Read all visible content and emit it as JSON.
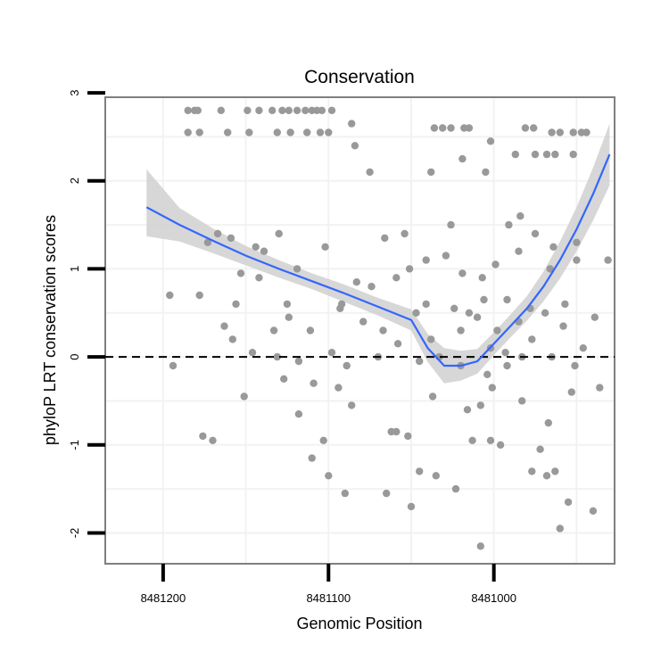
{
  "chart_data": {
    "type": "scatter",
    "title": "Conservation",
    "xlabel": "Genomic Position",
    "ylabel": "phyloP LRT conservation scores",
    "x_reversed": true,
    "xlim": [
      8481235,
      8480927
    ],
    "ylim": [
      -2.35,
      2.95
    ],
    "xticks": [
      8481200,
      8481100,
      8481000
    ],
    "x_tick_labels": [
      "8481200",
      "8481100",
      "8481000"
    ],
    "yticks": [
      -2,
      -1,
      0,
      1,
      2,
      3
    ],
    "y_tick_labels": [
      "-2",
      "-1",
      "0",
      "1",
      "2",
      "3"
    ],
    "reference_line": {
      "y": 0,
      "style": "dashed"
    },
    "colors": {
      "points": "#999999",
      "smooth": "#3366ff",
      "band": "#d0d0d0",
      "panel_border": "#7f7f7f",
      "grid": "#f2f2f2"
    },
    "series": [
      {
        "name": "scores",
        "points": [
          [
            8481185,
            2.8
          ],
          [
            8481181,
            2.8
          ],
          [
            8481179,
            2.8
          ],
          [
            8481165,
            2.8
          ],
          [
            8481149,
            2.8
          ],
          [
            8481142,
            2.8
          ],
          [
            8481134,
            2.8
          ],
          [
            8481128,
            2.8
          ],
          [
            8481124,
            2.8
          ],
          [
            8481119,
            2.8
          ],
          [
            8481114,
            2.8
          ],
          [
            8481110,
            2.8
          ],
          [
            8481107,
            2.8
          ],
          [
            8481104,
            2.8
          ],
          [
            8481098,
            2.8
          ],
          [
            8481185,
            2.55
          ],
          [
            8481178,
            2.55
          ],
          [
            8481161,
            2.55
          ],
          [
            8481148,
            2.55
          ],
          [
            8481131,
            2.55
          ],
          [
            8481123,
            2.55
          ],
          [
            8481113,
            2.55
          ],
          [
            8481105,
            2.55
          ],
          [
            8481100,
            2.55
          ],
          [
            8481036,
            2.6
          ],
          [
            8481031,
            2.6
          ],
          [
            8481026,
            2.6
          ],
          [
            8481018,
            2.6
          ],
          [
            8481015,
            2.6
          ],
          [
            8480981,
            2.6
          ],
          [
            8480976,
            2.6
          ],
          [
            8480965,
            2.55
          ],
          [
            8480960,
            2.55
          ],
          [
            8480952,
            2.55
          ],
          [
            8480947,
            2.55
          ],
          [
            8480944,
            2.55
          ],
          [
            8480987,
            2.3
          ],
          [
            8480975,
            2.3
          ],
          [
            8480968,
            2.3
          ],
          [
            8480963,
            2.3
          ],
          [
            8480952,
            2.3
          ],
          [
            8481086,
            2.65
          ],
          [
            8481084,
            2.4
          ],
          [
            8481075,
            2.1
          ],
          [
            8481038,
            2.1
          ],
          [
            8481005,
            2.1
          ],
          [
            8481002,
            2.45
          ],
          [
            8481019,
            2.25
          ],
          [
            8481173,
            1.3
          ],
          [
            8481167,
            1.4
          ],
          [
            8481159,
            1.35
          ],
          [
            8481144,
            1.25
          ],
          [
            8481130,
            1.4
          ],
          [
            8481139,
            1.2
          ],
          [
            8481102,
            1.25
          ],
          [
            8481066,
            1.35
          ],
          [
            8481054,
            1.4
          ],
          [
            8481026,
            1.5
          ],
          [
            8480984,
            1.6
          ],
          [
            8480991,
            1.5
          ],
          [
            8480975,
            1.4
          ],
          [
            8480964,
            1.25
          ],
          [
            8480950,
            1.3
          ],
          [
            8481153,
            0.95
          ],
          [
            8481142,
            0.9
          ],
          [
            8481119,
            1.0
          ],
          [
            8481083,
            0.85
          ],
          [
            8481074,
            0.8
          ],
          [
            8481059,
            0.9
          ],
          [
            8481051,
            1.0
          ],
          [
            8481041,
            1.1
          ],
          [
            8481029,
            1.15
          ],
          [
            8481019,
            0.95
          ],
          [
            8481007,
            0.9
          ],
          [
            8480999,
            1.05
          ],
          [
            8480985,
            1.2
          ],
          [
            8480966,
            1.0
          ],
          [
            8480950,
            1.1
          ],
          [
            8480931,
            1.1
          ],
          [
            8481163,
            0.35
          ],
          [
            8481158,
            0.2
          ],
          [
            8481146,
            0.05
          ],
          [
            8481133,
            0.3
          ],
          [
            8481124,
            0.45
          ],
          [
            8481111,
            0.3
          ],
          [
            8481093,
            0.55
          ],
          [
            8481079,
            0.4
          ],
          [
            8481067,
            0.3
          ],
          [
            8481058,
            0.15
          ],
          [
            8481047,
            0.5
          ],
          [
            8481038,
            0.2
          ],
          [
            8481020,
            0.3
          ],
          [
            8481010,
            0.45
          ],
          [
            8481002,
            0.1
          ],
          [
            8480998,
            0.3
          ],
          [
            8480993,
            0.05
          ],
          [
            8480985,
            0.4
          ],
          [
            8480977,
            0.2
          ],
          [
            8480969,
            0.5
          ],
          [
            8480958,
            0.35
          ],
          [
            8480946,
            0.1
          ],
          [
            8481196,
            0.7
          ],
          [
            8481178,
            0.7
          ],
          [
            8481156,
            0.6
          ],
          [
            8481125,
            0.6
          ],
          [
            8481092,
            0.6
          ],
          [
            8481041,
            0.6
          ],
          [
            8481024,
            0.55
          ],
          [
            8481015,
            0.5
          ],
          [
            8481006,
            0.65
          ],
          [
            8480992,
            0.65
          ],
          [
            8480978,
            0.55
          ],
          [
            8480957,
            0.6
          ],
          [
            8480939,
            0.45
          ],
          [
            8481131,
            0.0
          ],
          [
            8481118,
            -0.05
          ],
          [
            8481098,
            0.05
          ],
          [
            8481089,
            -0.1
          ],
          [
            8481070,
            0.0
          ],
          [
            8481045,
            -0.05
          ],
          [
            8481033,
            0.0
          ],
          [
            8481020,
            -0.1
          ],
          [
            8481004,
            -0.2
          ],
          [
            8480992,
            -0.1
          ],
          [
            8480983,
            0.0
          ],
          [
            8480965,
            0.0
          ],
          [
            8480951,
            -0.1
          ],
          [
            8481151,
            -0.45
          ],
          [
            8481127,
            -0.25
          ],
          [
            8481118,
            -0.65
          ],
          [
            8481109,
            -0.3
          ],
          [
            8481094,
            -0.35
          ],
          [
            8481086,
            -0.55
          ],
          [
            8481062,
            -0.85
          ],
          [
            8481037,
            -0.45
          ],
          [
            8481016,
            -0.6
          ],
          [
            8481008,
            -0.55
          ],
          [
            8481001,
            -0.35
          ],
          [
            8480983,
            -0.5
          ],
          [
            8480967,
            -0.75
          ],
          [
            8480953,
            -0.4
          ],
          [
            8480936,
            -0.35
          ],
          [
            8481194,
            -0.1
          ],
          [
            8481176,
            -0.9
          ],
          [
            8481170,
            -0.95
          ],
          [
            8481110,
            -1.15
          ],
          [
            8481103,
            -0.95
          ],
          [
            8481100,
            -1.35
          ],
          [
            8481090,
            -1.55
          ],
          [
            8481065,
            -1.55
          ],
          [
            8481059,
            -0.85
          ],
          [
            8481052,
            -0.9
          ],
          [
            8481045,
            -1.3
          ],
          [
            8481035,
            -1.35
          ],
          [
            8481023,
            -1.5
          ],
          [
            8481013,
            -0.95
          ],
          [
            8481002,
            -0.95
          ],
          [
            8480996,
            -1.0
          ],
          [
            8480972,
            -1.05
          ],
          [
            8480977,
            -1.3
          ],
          [
            8480968,
            -1.35
          ],
          [
            8480963,
            -1.3
          ],
          [
            8480960,
            -1.95
          ],
          [
            8480955,
            -1.65
          ],
          [
            8480940,
            -1.75
          ],
          [
            8481008,
            -2.15
          ],
          [
            8481050,
            -1.7
          ]
        ]
      }
    ],
    "smooth": {
      "x": [
        8481210,
        8481190,
        8481170,
        8481150,
        8481130,
        8481110,
        8481090,
        8481070,
        8481050,
        8481040,
        8481030,
        8481020,
        8481010,
        8481000,
        8480990,
        8480980,
        8480970,
        8480960,
        8480950,
        8480940,
        8480930
      ],
      "y": [
        1.7,
        1.5,
        1.32,
        1.15,
        1.0,
        0.86,
        0.72,
        0.57,
        0.42,
        0.1,
        -0.1,
        -0.1,
        -0.05,
        0.15,
        0.35,
        0.55,
        0.8,
        1.1,
        1.45,
        1.85,
        2.3
      ],
      "lower": [
        1.37,
        1.31,
        1.18,
        1.04,
        0.9,
        0.77,
        0.62,
        0.47,
        0.3,
        -0.06,
        -0.3,
        -0.27,
        -0.19,
        0.02,
        0.22,
        0.41,
        0.63,
        0.89,
        1.2,
        1.55,
        1.95
      ],
      "upper": [
        2.13,
        1.69,
        1.46,
        1.26,
        1.1,
        0.95,
        0.82,
        0.67,
        0.54,
        0.26,
        0.1,
        0.07,
        0.09,
        0.28,
        0.48,
        0.69,
        0.97,
        1.31,
        1.7,
        2.15,
        2.65
      ]
    }
  }
}
